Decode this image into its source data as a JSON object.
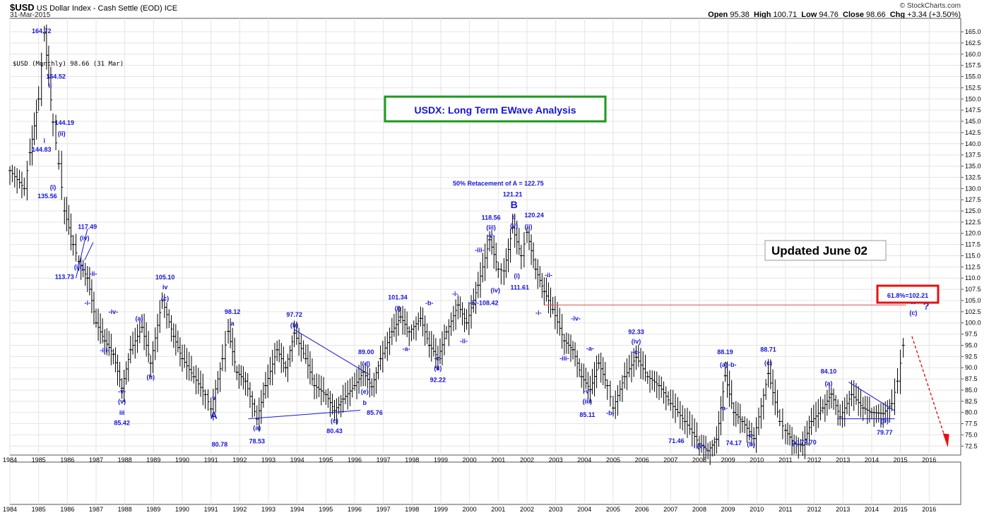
{
  "header": {
    "symbol": "$USD",
    "name": "US Dollar Index - Cash Settle (EOD)",
    "exchange": "ICE",
    "date": "31-Mar-2015",
    "credit": "© StockCharts.com",
    "ohlc": {
      "open_label": "Open",
      "open": "95.38",
      "high_label": "High",
      "high": "100.71",
      "low_label": "Low",
      "low": "94.76",
      "close_label": "Close",
      "close": "98.66",
      "chg_label": "Chg",
      "chg": "+3.34 (+3.50%)"
    }
  },
  "legend_text": "$USD (Monthly) 98.66 (31 Mar)",
  "title_box": "USDX: Long Term EWave Analysis",
  "updated_box": "Updated June 02",
  "retrace_box": "61.8%=102.21",
  "retrace_label": "50% Retacement of A = 122.75",
  "colors": {
    "accent_green": "#1a9a1a",
    "accent_red": "#e81010",
    "wave_blue": "#1515d8",
    "bars": "#000000",
    "hline": "#e06060"
  },
  "chart_data": {
    "type": "line",
    "series": [
      {
        "values": [
          [
            1984.0,
            134
          ],
          [
            1984.5,
            130
          ],
          [
            1984.7,
            138
          ],
          [
            1985.0,
            150
          ],
          [
            1985.2,
            164.72
          ],
          [
            1985.5,
            144.83
          ],
          [
            1985.7,
            135.56
          ],
          [
            1985.9,
            125
          ],
          [
            1986.2,
            117.49
          ],
          [
            1986.4,
            113.73
          ],
          [
            1986.7,
            110
          ],
          [
            1987.0,
            100
          ],
          [
            1987.3,
            96
          ],
          [
            1987.6,
            93
          ],
          [
            1987.9,
            85.42
          ],
          [
            1988.2,
            94
          ],
          [
            1988.6,
            99
          ],
          [
            1988.9,
            91
          ],
          [
            1989.3,
            105.1
          ],
          [
            1989.7,
            97
          ],
          [
            1990.0,
            92
          ],
          [
            1990.4,
            88
          ],
          [
            1990.8,
            84
          ],
          [
            1991.0,
            80.78
          ],
          [
            1991.4,
            92
          ],
          [
            1991.6,
            98.12
          ],
          [
            1991.9,
            89
          ],
          [
            1992.2,
            87
          ],
          [
            1992.6,
            78.53
          ],
          [
            1992.9,
            86
          ],
          [
            1993.3,
            94
          ],
          [
            1993.6,
            90
          ],
          [
            1993.9,
            97.72
          ],
          [
            1994.3,
            92
          ],
          [
            1994.6,
            86
          ],
          [
            1995.0,
            84
          ],
          [
            1995.3,
            80.43
          ],
          [
            1995.6,
            83
          ],
          [
            1996.0,
            86
          ],
          [
            1996.3,
            89.0
          ],
          [
            1996.6,
            85.76
          ],
          [
            1996.9,
            92
          ],
          [
            1997.3,
            98
          ],
          [
            1997.6,
            101.34
          ],
          [
            1997.9,
            98
          ],
          [
            1998.3,
            101
          ],
          [
            1998.6,
            95
          ],
          [
            1998.9,
            92.22
          ],
          [
            1999.2,
            98
          ],
          [
            1999.6,
            104
          ],
          [
            1999.9,
            100
          ],
          [
            2000.3,
            108.42
          ],
          [
            2000.7,
            118.56
          ],
          [
            2001.0,
            112
          ],
          [
            2001.2,
            111.61
          ],
          [
            2001.5,
            121.21
          ],
          [
            2001.8,
            115
          ],
          [
            2002.0,
            120.24
          ],
          [
            2002.3,
            112
          ],
          [
            2002.6,
            107
          ],
          [
            2002.9,
            103
          ],
          [
            2003.3,
            96
          ],
          [
            2003.6,
            94
          ],
          [
            2003.9,
            88
          ],
          [
            2004.2,
            85.11
          ],
          [
            2004.5,
            91
          ],
          [
            2004.8,
            86
          ],
          [
            2005.0,
            81
          ],
          [
            2005.4,
            88
          ],
          [
            2005.8,
            92.33
          ],
          [
            2006.2,
            88
          ],
          [
            2006.6,
            86
          ],
          [
            2007.0,
            82
          ],
          [
            2007.5,
            78
          ],
          [
            2008.0,
            73
          ],
          [
            2008.3,
            71.46
          ],
          [
            2008.6,
            74
          ],
          [
            2008.9,
            88.19
          ],
          [
            2009.2,
            80
          ],
          [
            2009.5,
            78
          ],
          [
            2009.9,
            74.17
          ],
          [
            2010.4,
            88.71
          ],
          [
            2010.8,
            78
          ],
          [
            2011.0,
            76
          ],
          [
            2011.3,
            73
          ],
          [
            2011.6,
            72.7
          ],
          [
            2011.9,
            78
          ],
          [
            2012.3,
            81
          ],
          [
            2012.6,
            84.1
          ],
          [
            2012.9,
            79
          ],
          [
            2013.3,
            84
          ],
          [
            2013.7,
            81
          ],
          [
            2014.0,
            80
          ],
          [
            2014.4,
            79.77
          ],
          [
            2014.7,
            82
          ],
          [
            2014.9,
            87
          ],
          [
            2015.1,
            95
          ],
          [
            2015.2,
            98.66
          ]
        ]
      }
    ],
    "x_ticks": [
      "1984",
      "1985",
      "1986",
      "1987",
      "1988",
      "1989",
      "1990",
      "1991",
      "1992",
      "1993",
      "1994",
      "1995",
      "1996",
      "1997",
      "1998",
      "1999",
      "2000",
      "2001",
      "2002",
      "2003",
      "2004",
      "2005",
      "2006",
      "2007",
      "2008",
      "2009",
      "2010",
      "2011",
      "2012",
      "2013",
      "2014",
      "2015",
      "2016"
    ],
    "y_ticks": [
      "72.5",
      "75.0",
      "77.5",
      "80.0",
      "82.5",
      "85.0",
      "87.5",
      "90.0",
      "92.5",
      "95.0",
      "97.5",
      "100.0",
      "102.5",
      "105.0",
      "107.5",
      "110.0",
      "112.5",
      "115.0",
      "117.5",
      "120.0",
      "122.5",
      "125.0",
      "127.5",
      "130.0",
      "132.5",
      "135.0",
      "137.5",
      "140.0",
      "142.5",
      "145.0",
      "147.5",
      "150.0",
      "152.5",
      "155.0",
      "157.5",
      "160.0",
      "162.5",
      "165.0"
    ],
    "xlim": [
      1984,
      2017.1
    ],
    "ylim": [
      70.5,
      168
    ],
    "horizontal_line": 104,
    "annotations": [
      {
        "x": 1985.1,
        "y": 164.72,
        "text": "164.72"
      },
      {
        "x": 1985.6,
        "y": 154.52,
        "text": "154.52"
      },
      {
        "x": 1985.4,
        "y": 152.5,
        "text": "ii"
      },
      {
        "x": 1985.9,
        "y": 144.19,
        "text": "144.19"
      },
      {
        "x": 1985.8,
        "y": 141.8,
        "text": "(ii)"
      },
      {
        "x": 1985.2,
        "y": 140.2,
        "text": "i"
      },
      {
        "x": 1985.1,
        "y": 138.2,
        "text": "144.83"
      },
      {
        "x": 1985.5,
        "y": 129.8,
        "text": "(i)"
      },
      {
        "x": 1985.3,
        "y": 127.8,
        "text": "135.56"
      },
      {
        "x": 1986.7,
        "y": 121.0,
        "text": "117.49"
      },
      {
        "x": 1986.6,
        "y": 118.5,
        "text": "(iv)"
      },
      {
        "x": 1986.4,
        "y": 112.0,
        "text": "(iii)"
      },
      {
        "x": 1985.9,
        "y": 109.8,
        "text": "113.73"
      },
      {
        "x": 1986.9,
        "y": 110.5,
        "text": "-ii-"
      },
      {
        "x": 1986.7,
        "y": 104.0,
        "text": "-i-"
      },
      {
        "x": 1987.6,
        "y": 102.0,
        "text": "-iv-"
      },
      {
        "x": 1987.3,
        "y": 93.4,
        "text": "-iii-"
      },
      {
        "x": 1989.4,
        "y": 109.7,
        "text": "105.10"
      },
      {
        "x": 1989.4,
        "y": 107.5,
        "text": "iv"
      },
      {
        "x": 1989.4,
        "y": 105.0,
        "text": "(c)"
      },
      {
        "x": 1988.5,
        "y": 100.5,
        "text": "(a)"
      },
      {
        "x": 1988.9,
        "y": 87.4,
        "text": "(b)"
      },
      {
        "x": 1987.9,
        "y": 84.2,
        "text": "-v-"
      },
      {
        "x": 1987.9,
        "y": 82.0,
        "text": "(v)"
      },
      {
        "x": 1987.9,
        "y": 79.5,
        "text": "iii"
      },
      {
        "x": 1987.9,
        "y": 77.2,
        "text": "85.42"
      },
      {
        "x": 1991.75,
        "y": 102.0,
        "text": "98.12"
      },
      {
        "x": 1991.75,
        "y": 99.4,
        "text": "a"
      },
      {
        "x": 1991.1,
        "y": 82.8,
        "text": "v"
      },
      {
        "x": 1991.3,
        "y": 72.4,
        "text": "80.78"
      },
      {
        "x": 1992.6,
        "y": 76.1,
        "text": "(a)"
      },
      {
        "x": 1992.6,
        "y": 73.1,
        "text": "78.53"
      },
      {
        "x": 1993.9,
        "y": 101.4,
        "text": "97.72"
      },
      {
        "x": 1993.9,
        "y": 99.0,
        "text": "(b)"
      },
      {
        "x": 1995.3,
        "y": 77.7,
        "text": "(c)"
      },
      {
        "x": 1995.3,
        "y": 75.4,
        "text": "80.43"
      },
      {
        "x": 1996.4,
        "y": 93.0,
        "text": "89.00"
      },
      {
        "x": 1996.4,
        "y": 90.4,
        "text": "(d)"
      },
      {
        "x": 1996.35,
        "y": 84.2,
        "text": "(e)"
      },
      {
        "x": 1996.35,
        "y": 81.7,
        "text": "b"
      },
      {
        "x": 1996.7,
        "y": 79.5,
        "text": "85.76"
      },
      {
        "x": 1997.5,
        "y": 105.2,
        "text": "101.34"
      },
      {
        "x": 1997.5,
        "y": 102.8,
        "text": "(i)"
      },
      {
        "x": 1997.8,
        "y": 93.7,
        "text": "-a-"
      },
      {
        "x": 1998.6,
        "y": 104.0,
        "text": "-b-"
      },
      {
        "x": 1998.9,
        "y": 91.6,
        "text": "-c-"
      },
      {
        "x": 1998.9,
        "y": 89.4,
        "text": "(ii)"
      },
      {
        "x": 1998.9,
        "y": 86.8,
        "text": "92.22"
      },
      {
        "x": 1999.5,
        "y": 106.0,
        "text": "-i-"
      },
      {
        "x": 1999.8,
        "y": 95.5,
        "text": "-ii-"
      },
      {
        "x": 2001.0,
        "y": 130.7,
        "text": "50% Retacement of A = 122.75"
      },
      {
        "x": 2001.5,
        "y": 128.2,
        "text": "121.21"
      },
      {
        "x": 2000.75,
        "y": 123.0,
        "text": "118.56"
      },
      {
        "x": 2000.75,
        "y": 120.8,
        "text": "(iii)"
      },
      {
        "x": 2000.75,
        "y": 119.0,
        "text": "-v-"
      },
      {
        "x": 2000.35,
        "y": 115.8,
        "text": "-iii-"
      },
      {
        "x": 2001.55,
        "y": 123.2,
        "text": "c"
      },
      {
        "x": 2001.55,
        "y": 121.2,
        "text": "(v)"
      },
      {
        "x": 2002.25,
        "y": 123.6,
        "text": "120.24"
      },
      {
        "x": 2002.05,
        "y": 121.0,
        "text": "(ii)"
      },
      {
        "x": 2000.9,
        "y": 106.8,
        "text": "(iv)"
      },
      {
        "x": 2000.5,
        "y": 104.0,
        "text": "-iv-108.42"
      },
      {
        "x": 2001.65,
        "y": 110.0,
        "text": "(i)"
      },
      {
        "x": 2001.75,
        "y": 107.4,
        "text": "111.61"
      },
      {
        "x": 2002.75,
        "y": 110.2,
        "text": "-ii-"
      },
      {
        "x": 2002.4,
        "y": 101.8,
        "text": "-i-"
      },
      {
        "x": 2003.7,
        "y": 100.5,
        "text": "-iv-"
      },
      {
        "x": 2003.3,
        "y": 91.6,
        "text": "-iii-"
      },
      {
        "x": 2004.2,
        "y": 93.8,
        "text": "-a-"
      },
      {
        "x": 2004.1,
        "y": 84.3,
        "text": "-v-"
      },
      {
        "x": 2004.1,
        "y": 82.0,
        "text": "(iii)"
      },
      {
        "x": 2004.1,
        "y": 79.0,
        "text": "85.11"
      },
      {
        "x": 2004.9,
        "y": 79.4,
        "text": "-b-"
      },
      {
        "x": 2005.8,
        "y": 97.5,
        "text": "92.33"
      },
      {
        "x": 2005.8,
        "y": 95.4,
        "text": "(iv)"
      },
      {
        "x": 2005.8,
        "y": 93.0,
        "text": "-c-"
      },
      {
        "x": 2008.9,
        "y": 93.0,
        "text": "88.19"
      },
      {
        "x": 2008.85,
        "y": 90.2,
        "text": "(a)"
      },
      {
        "x": 2009.15,
        "y": 90.2,
        "text": "-b-"
      },
      {
        "x": 2008.85,
        "y": 80.5,
        "text": "-a-"
      },
      {
        "x": 2010.4,
        "y": 93.6,
        "text": "88.71"
      },
      {
        "x": 2010.4,
        "y": 90.6,
        "text": "(c)"
      },
      {
        "x": 2007.2,
        "y": 73.2,
        "text": "71.46"
      },
      {
        "x": 2009.2,
        "y": 72.7,
        "text": "74.17"
      },
      {
        "x": 2009.8,
        "y": 74.4,
        "text": "-c-"
      },
      {
        "x": 2009.8,
        "y": 72.5,
        "text": "(b)"
      },
      {
        "x": 2011.35,
        "y": 72.8,
        "text": "(x)"
      },
      {
        "x": 2011.8,
        "y": 72.9,
        "text": "72.70"
      },
      {
        "x": 2012.5,
        "y": 88.7,
        "text": "84.10"
      },
      {
        "x": 2012.5,
        "y": 86.0,
        "text": "(a)"
      },
      {
        "x": 2014.45,
        "y": 77.7,
        "text": "(b)"
      },
      {
        "x": 2014.45,
        "y": 75.1,
        "text": "79.77"
      },
      {
        "x": 2015.45,
        "y": 101.8,
        "text": "(c)"
      }
    ]
  }
}
